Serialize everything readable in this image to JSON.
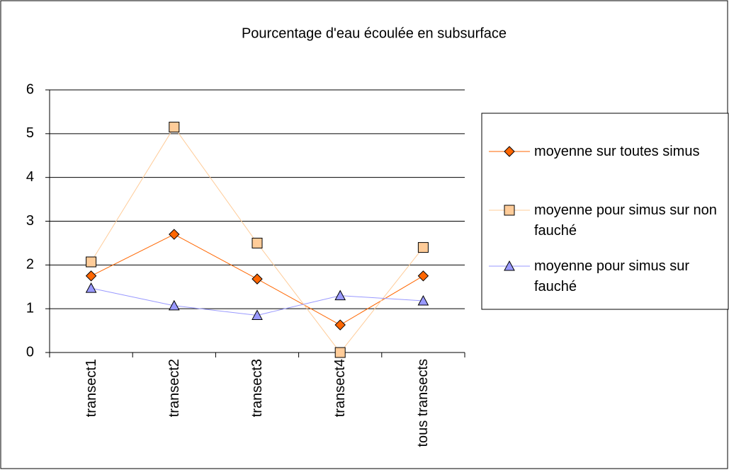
{
  "chart_data": {
    "type": "line",
    "title": "Pourcentage d'eau écoulée en subsurface",
    "categories": [
      "transect1",
      "transect2",
      "transect3",
      "transect4",
      "tous transects"
    ],
    "series": [
      {
        "name": "moyenne sur toutes simus",
        "color": "#ff6600",
        "marker": "diamond",
        "values": [
          1.75,
          2.7,
          1.68,
          0.63,
          1.75
        ]
      },
      {
        "name": "moyenne pour simus sur non fauché",
        "color": "#ffcc99",
        "marker": "square",
        "values": [
          2.07,
          5.15,
          2.5,
          0,
          2.4
        ]
      },
      {
        "name": "moyenne pour simus sur fauché",
        "color": "#9999ff",
        "marker": "triangle",
        "values": [
          1.47,
          1.07,
          0.85,
          1.3,
          1.18
        ]
      }
    ],
    "ylim": [
      0,
      6
    ],
    "yticks": [
      0,
      1,
      2,
      3,
      4,
      5,
      6
    ],
    "grid": true,
    "legend": "right"
  }
}
